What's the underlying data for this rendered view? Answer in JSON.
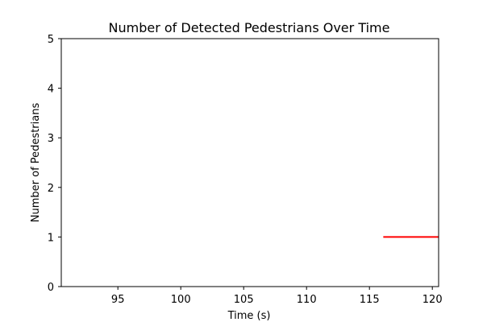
{
  "chart_data": {
    "type": "line",
    "title": "Number of Detected Pedestrians Over Time",
    "xlabel": "Time (s)",
    "ylabel": "Number of Pedestrians",
    "xlim": [
      90.5,
      120.5
    ],
    "ylim": [
      0,
      5
    ],
    "xticks": [
      95,
      100,
      105,
      110,
      115,
      120
    ],
    "yticks": [
      0,
      1,
      2,
      3,
      4,
      5
    ],
    "grid": false,
    "series": [
      {
        "color": "#ff0000",
        "x": [
          116.1,
          120.5
        ],
        "y": [
          1,
          1
        ]
      }
    ]
  }
}
